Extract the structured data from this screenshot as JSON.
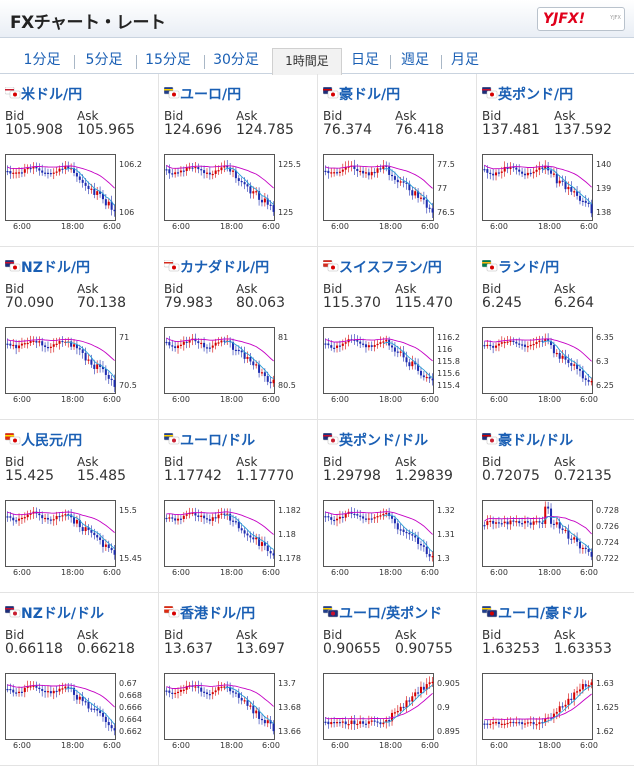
{
  "header": {
    "title": "FXチャート・レート",
    "logo_text": "YJFX!",
    "logo_sub": "YJFX"
  },
  "tabs": [
    {
      "label": "1分足"
    },
    {
      "label": "5分足"
    },
    {
      "label": "15分足"
    },
    {
      "label": "30分足"
    },
    {
      "label": "1時間足",
      "active": true
    },
    {
      "label": "日足"
    },
    {
      "label": "週足"
    },
    {
      "label": "月足"
    }
  ],
  "labels": {
    "bid": "Bid",
    "ask": "Ask"
  },
  "x_ticks": [
    "6:00",
    "18:00",
    "6:00"
  ],
  "colors": {
    "up": "#d40000",
    "down": "#1e2db0",
    "ma_short": "#2a9fd6",
    "ma_long": "#c400c4",
    "link": "#1a5fb4"
  },
  "pairs": [
    {
      "name": "米ドル/円",
      "flag": "us-jp",
      "bid": "105.908",
      "ask": "105.965",
      "yticks": [
        "106.2",
        "106"
      ],
      "shape": "drop"
    },
    {
      "name": "ユーロ/円",
      "flag": "eu-jp",
      "bid": "124.696",
      "ask": "124.785",
      "yticks": [
        "125.5",
        "125"
      ],
      "shape": "drop"
    },
    {
      "name": "豪ドル/円",
      "flag": "au-jp",
      "bid": "76.374",
      "ask": "76.418",
      "yticks": [
        "77.5",
        "77",
        "76.5"
      ],
      "shape": "drop"
    },
    {
      "name": "英ポンド/円",
      "flag": "gb-jp",
      "bid": "137.481",
      "ask": "137.592",
      "yticks": [
        "140",
        "139",
        "138"
      ],
      "shape": "drop"
    },
    {
      "name": "NZドル/円",
      "flag": "nz-jp",
      "bid": "70.090",
      "ask": "70.138",
      "yticks": [
        "71",
        "70.5"
      ],
      "shape": "drop"
    },
    {
      "name": "カナダドル/円",
      "flag": "ca-jp",
      "bid": "79.983",
      "ask": "80.063",
      "yticks": [
        "81",
        "80.5"
      ],
      "shape": "drop"
    },
    {
      "name": "スイスフラン/円",
      "flag": "ch-jp",
      "bid": "115.370",
      "ask": "115.470",
      "yticks": [
        "116.2",
        "116",
        "115.8",
        "115.6",
        "115.4"
      ],
      "shape": "drop"
    },
    {
      "name": "ランド/円",
      "flag": "za-jp",
      "bid": "6.245",
      "ask": "6.264",
      "yticks": [
        "6.35",
        "6.3",
        "6.25"
      ],
      "shape": "drop"
    },
    {
      "name": "人民元/円",
      "flag": "cn-jp",
      "bid": "15.425",
      "ask": "15.485",
      "yticks": [
        "15.5",
        "15.45"
      ],
      "shape": "drop"
    },
    {
      "name": "ユーロ/ドル",
      "flag": "eu-us",
      "bid": "1.17742",
      "ask": "1.17770",
      "yticks": [
        "1.182",
        "1.18",
        "1.178"
      ],
      "shape": "drop"
    },
    {
      "name": "英ポンド/ドル",
      "flag": "gb-us",
      "bid": "1.29798",
      "ask": "1.29839",
      "yticks": [
        "1.32",
        "1.31",
        "1.3"
      ],
      "shape": "drop"
    },
    {
      "name": "豪ドル/ドル",
      "flag": "au-us",
      "bid": "0.72075",
      "ask": "0.72135",
      "yticks": [
        "0.728",
        "0.726",
        "0.724",
        "0.722"
      ],
      "shape": "spike"
    },
    {
      "name": "NZドル/ドル",
      "flag": "nz-us",
      "bid": "0.66118",
      "ask": "0.66218",
      "yticks": [
        "0.67",
        "0.668",
        "0.666",
        "0.664",
        "0.662"
      ],
      "shape": "drop"
    },
    {
      "name": "香港ドル/円",
      "flag": "hk-jp",
      "bid": "13.637",
      "ask": "13.697",
      "yticks": [
        "13.7",
        "13.68",
        "13.66"
      ],
      "shape": "drop"
    },
    {
      "name": "ユーロ/英ポンド",
      "flag": "eu-gb",
      "bid": "0.90655",
      "ask": "0.90755",
      "yticks": [
        "0.905",
        "0.9",
        "0.895"
      ],
      "shape": "rise"
    },
    {
      "name": "ユーロ/豪ドル",
      "flag": "eu-au",
      "bid": "1.63253",
      "ask": "1.63353",
      "yticks": [
        "1.63",
        "1.625",
        "1.62"
      ],
      "shape": "rise"
    }
  ]
}
